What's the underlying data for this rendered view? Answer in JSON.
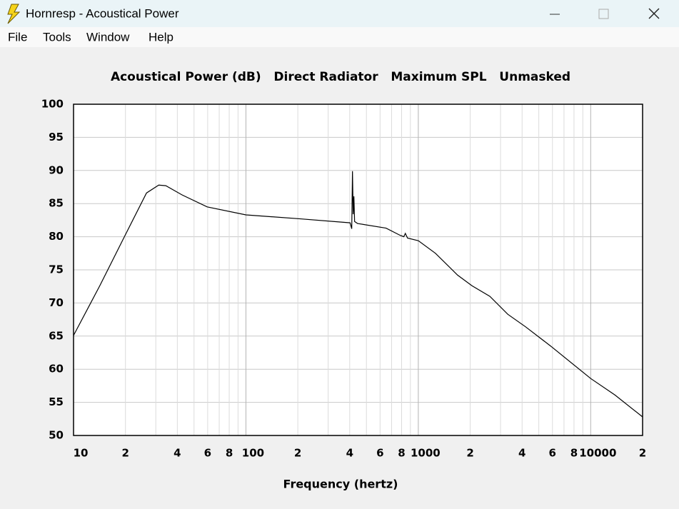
{
  "window": {
    "title": "Hornresp - Acoustical Power",
    "menu": [
      "File",
      "Tools",
      "Window",
      "Help"
    ]
  },
  "chart_data": {
    "type": "line",
    "title": "Acoustical Power (dB)   Direct Radiator   Maximum SPL   Unmasked",
    "x_label": "Frequency (hertz)",
    "x": [
      10,
      14.2,
      19.9,
      26.5,
      31.2,
      34.3,
      42.7,
      59.6,
      100,
      207,
      402,
      411,
      415,
      419,
      423,
      427,
      444,
      650,
      786,
      824,
      841,
      866,
      1000,
      1257,
      1690,
      2047,
      2600,
      3303,
      4191,
      5855,
      10000,
      13840,
      20000
    ],
    "series": [
      {
        "color": "#000000",
        "values": [
          65.1,
          72.6,
          80.2,
          86.6,
          87.8,
          87.7,
          86.3,
          84.5,
          83.3,
          82.7,
          82.1,
          81.2,
          89.9,
          83.4,
          86.1,
          82.3,
          82.0,
          81.3,
          80.2,
          80.0,
          80.5,
          79.8,
          79.4,
          77.5,
          74.2,
          72.6,
          71.0,
          68.3,
          66.4,
          63.5,
          58.6,
          56.1,
          52.8
        ]
      }
    ],
    "x_scale": "log",
    "xlim": [
      10,
      20000
    ],
    "xticks": [
      10,
      {
        "value": 20,
        "label": "2"
      },
      {
        "value": 40,
        "label": "4"
      },
      {
        "value": 60,
        "label": "6"
      },
      {
        "value": 80,
        "label": "8"
      },
      100,
      {
        "value": 200,
        "label": "2"
      },
      {
        "value": 400,
        "label": "4"
      },
      {
        "value": 600,
        "label": "6"
      },
      {
        "value": 800,
        "label": "8"
      },
      1000,
      {
        "value": 2000,
        "label": "2"
      },
      {
        "value": 4000,
        "label": "4"
      },
      {
        "value": 6000,
        "label": "6"
      },
      {
        "value": 8000,
        "label": "8"
      },
      10000,
      {
        "value": 20000,
        "label": "2"
      }
    ],
    "xminor": [
      30,
      50,
      70,
      90,
      300,
      500,
      700,
      900,
      3000,
      5000,
      7000,
      9000
    ],
    "ylim": [
      50,
      100
    ],
    "yticks": [
      50,
      55,
      60,
      65,
      70,
      75,
      80,
      85,
      90,
      95,
      100
    ],
    "grid": true
  }
}
